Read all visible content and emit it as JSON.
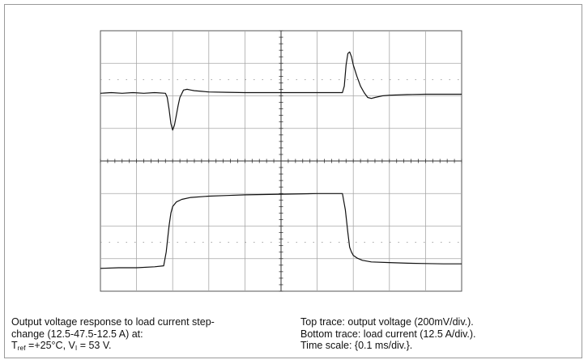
{
  "caption_left": {
    "line1": " Output voltage response to load current step-",
    "line2": "change (12.5-47.5-12.5 A) at:",
    "line3": {
      "t_symbol": "T",
      "t_sub": "ref",
      "t_value": " =+25°C, V",
      "v_sub": "I",
      "v_value": " = 53 V."
    }
  },
  "caption_right": {
    "line1": "Top trace: output voltage (200mV/div.).",
    "line2": "Bottom trace: load current (12.5 A/div.).",
    "line3": "Time scale: {0.1 ms/div.}."
  },
  "chart_data": {
    "type": "line",
    "grid": true,
    "divisions_x": 10,
    "divisions_y": 8,
    "series": [
      {
        "x": [
          0,
          0.3,
          0.6,
          0.9,
          1.2,
          1.5,
          1.8,
          1.85,
          1.9,
          1.95,
          2.0,
          2.05,
          2.1,
          2.15,
          2.2,
          2.3,
          2.4,
          2.5,
          2.6,
          2.8,
          3.0,
          3.5,
          4.0,
          4.5,
          5.0,
          5.5,
          6.0,
          6.5,
          6.7,
          6.75,
          6.8,
          6.85,
          6.9,
          6.95,
          7.0,
          7.1,
          7.2,
          7.3,
          7.4,
          7.5,
          7.6,
          7.8,
          8.0,
          8.5,
          9.0,
          9.5,
          10.0
        ],
        "values": [
          6.08,
          6.1,
          6.08,
          6.1,
          6.08,
          6.1,
          6.08,
          5.95,
          5.6,
          5.15,
          4.95,
          5.1,
          5.4,
          5.7,
          5.95,
          6.18,
          6.2,
          6.18,
          6.16,
          6.14,
          6.12,
          6.11,
          6.1,
          6.1,
          6.1,
          6.1,
          6.1,
          6.1,
          6.1,
          6.3,
          6.95,
          7.3,
          7.35,
          7.2,
          6.95,
          6.6,
          6.3,
          6.1,
          5.95,
          5.92,
          5.95,
          6.0,
          6.02,
          6.04,
          6.05,
          6.05,
          6.05
        ]
      },
      {
        "x": [
          0,
          0.5,
          1.0,
          1.5,
          1.75,
          1.82,
          1.9,
          1.95,
          2.0,
          2.1,
          2.25,
          2.5,
          3.0,
          3.5,
          4.0,
          5.0,
          6.0,
          6.7,
          6.78,
          6.85,
          6.9,
          6.95,
          7.0,
          7.1,
          7.25,
          7.5,
          8.0,
          8.5,
          9.0,
          9.5,
          10.0
        ],
        "values": [
          0.7,
          0.72,
          0.72,
          0.75,
          0.78,
          1.2,
          2.0,
          2.4,
          2.6,
          2.74,
          2.82,
          2.88,
          2.92,
          2.94,
          2.96,
          2.98,
          3.0,
          3.0,
          2.5,
          1.8,
          1.35,
          1.2,
          1.1,
          1.02,
          0.95,
          0.9,
          0.88,
          0.86,
          0.85,
          0.84,
          0.84
        ]
      }
    ]
  }
}
